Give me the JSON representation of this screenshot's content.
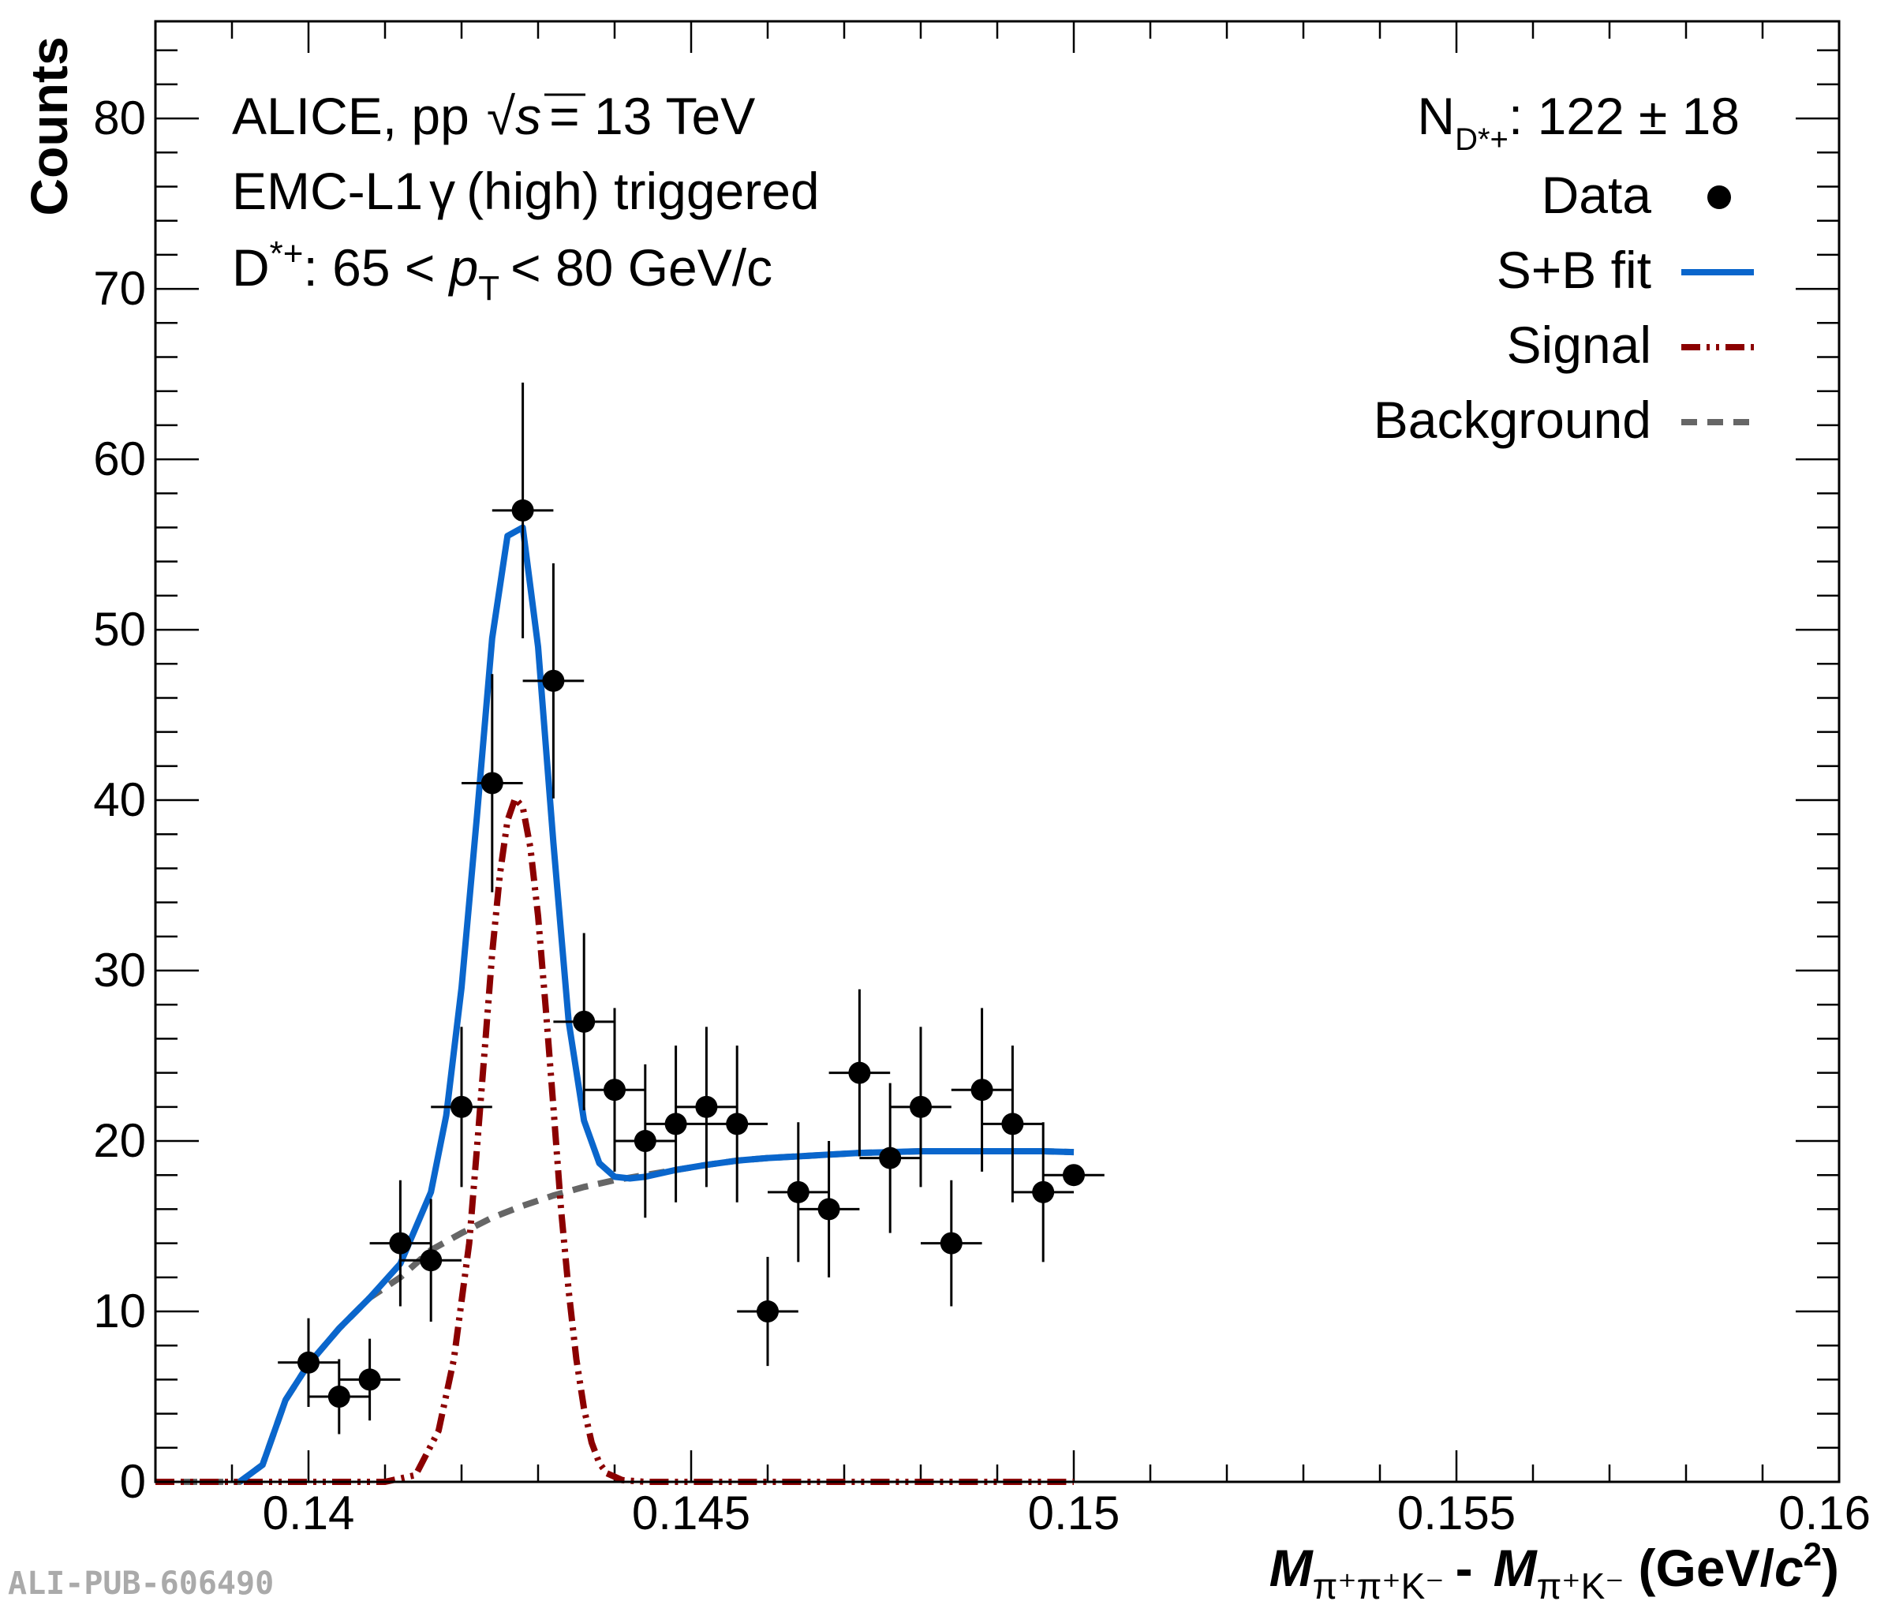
{
  "chart_data": {
    "type": "scatter",
    "xlabel": {
      "m1": "M",
      "sub1": "π⁺π⁺K⁻",
      "minus": "-",
      "m2": "M",
      "sub2": "π⁺K⁻",
      "unit_pre": "(GeV/",
      "unit_c": "c",
      "unit_pow": "2",
      "unit_post": ")"
    },
    "ylabel": "Counts",
    "xlim": [
      0.138,
      0.16
    ],
    "ylim": [
      0,
      85.7
    ],
    "x_ticks": [
      0.14,
      0.145,
      0.15,
      0.155,
      0.16
    ],
    "x_tick_labels": [
      "0.14",
      "0.145",
      "0.15",
      "0.155",
      "0.16"
    ],
    "y_ticks": [
      0,
      10,
      20,
      30,
      40,
      50,
      60,
      70,
      80
    ],
    "y_tick_labels": [
      "0",
      "10",
      "20",
      "30",
      "40",
      "50",
      "60",
      "70",
      "80"
    ],
    "annotations": {
      "line1_a": "ALICE, pp",
      "line1_sqrt": "√",
      "line1_s": "s",
      "line1_b": "= 13 TeV",
      "line2_a": "EMC-L1",
      "line2_gamma": "γ",
      "line2_b": "(high) triggered",
      "line3_a": "D",
      "line3_sup": "*+",
      "line3_b": ": 65 <",
      "line3_p": "p",
      "line3_sub": "T",
      "line3_c": "< 80 GeV/c",
      "yield_N": "N",
      "yield_sub": "D*+",
      "yield_value": ": 122 ± 18"
    },
    "legend": {
      "position": "top-right",
      "entries": [
        "Data",
        "S+B fit",
        "Signal",
        "Background"
      ]
    },
    "colors": {
      "data": "#000000",
      "fit": "#0a66cc",
      "signal": "#8b0000",
      "background": "#666666"
    },
    "series": [
      {
        "name": "Data",
        "x_half_width": 0.0004,
        "points": [
          {
            "x": 0.14,
            "y": 7,
            "err": 2.6
          },
          {
            "x": 0.1404,
            "y": 5,
            "err": 2.2
          },
          {
            "x": 0.1408,
            "y": 6,
            "err": 2.4
          },
          {
            "x": 0.1412,
            "y": 14,
            "err": 3.7
          },
          {
            "x": 0.1416,
            "y": 13,
            "err": 3.6
          },
          {
            "x": 0.142,
            "y": 22,
            "err": 4.7
          },
          {
            "x": 0.1424,
            "y": 41,
            "err": 6.4
          },
          {
            "x": 0.1428,
            "y": 57,
            "err": 7.5
          },
          {
            "x": 0.1432,
            "y": 47,
            "err": 6.9
          },
          {
            "x": 0.1436,
            "y": 27,
            "err": 5.2
          },
          {
            "x": 0.144,
            "y": 23,
            "err": 4.8
          },
          {
            "x": 0.1444,
            "y": 20,
            "err": 4.5
          },
          {
            "x": 0.1448,
            "y": 21,
            "err": 4.6
          },
          {
            "x": 0.1452,
            "y": 22,
            "err": 4.7
          },
          {
            "x": 0.1456,
            "y": 21,
            "err": 4.6
          },
          {
            "x": 0.146,
            "y": 10,
            "err": 3.2
          },
          {
            "x": 0.1464,
            "y": 17,
            "err": 4.1
          },
          {
            "x": 0.1468,
            "y": 16,
            "err": 4.0
          },
          {
            "x": 0.1472,
            "y": 24,
            "err": 4.9
          },
          {
            "x": 0.1476,
            "y": 19,
            "err": 4.4
          },
          {
            "x": 0.148,
            "y": 22,
            "err": 4.7
          },
          {
            "x": 0.1484,
            "y": 14,
            "err": 3.7
          },
          {
            "x": 0.1488,
            "y": 23,
            "err": 4.8
          },
          {
            "x": 0.1492,
            "y": 21,
            "err": 4.6
          },
          {
            "x": 0.1496,
            "y": 17,
            "err": 4.1
          },
          {
            "x": 0.15,
            "y": 18,
            "err": 0
          }
        ]
      },
      {
        "name": "S+B fit",
        "x": [
          0.1391,
          0.1394,
          0.1397,
          0.14,
          0.1404,
          0.1408,
          0.1412,
          0.1416,
          0.1418,
          0.142,
          0.1422,
          0.1424,
          0.1426,
          0.1428,
          0.143,
          0.1432,
          0.1434,
          0.1436,
          0.1438,
          0.144,
          0.1442,
          0.1444,
          0.1448,
          0.1452,
          0.1456,
          0.146,
          0.1464,
          0.1468,
          0.1472,
          0.1476,
          0.148,
          0.1484,
          0.1488,
          0.1492,
          0.1496,
          0.15
        ],
        "y": [
          0,
          1.0,
          4.8,
          6.9,
          9.0,
          10.8,
          12.8,
          17.0,
          21.5,
          29.0,
          39.0,
          49.5,
          55.5,
          56.0,
          49.0,
          37.5,
          27.0,
          21.2,
          18.7,
          17.9,
          17.8,
          17.9,
          18.3,
          18.6,
          18.85,
          19.0,
          19.1,
          19.2,
          19.3,
          19.35,
          19.4,
          19.4,
          19.4,
          19.4,
          19.4,
          19.35
        ]
      },
      {
        "name": "Signal",
        "x": [
          0.138,
          0.141,
          0.1414,
          0.1417,
          0.1419,
          0.1421,
          0.1422,
          0.1423,
          0.1424,
          0.1425,
          0.1426,
          0.1427,
          0.1428,
          0.1429,
          0.143,
          0.1431,
          0.1432,
          0.1433,
          0.1434,
          0.1435,
          0.1436,
          0.1437,
          0.1438,
          0.1439,
          0.1441,
          0.1444,
          0.15
        ],
        "y": [
          0,
          0,
          0.4,
          3.0,
          7.2,
          14.0,
          19.5,
          25.2,
          31.0,
          35.6,
          38.8,
          40.1,
          39.6,
          37.2,
          33.2,
          27.8,
          22.0,
          16.0,
          11.2,
          7.2,
          4.3,
          2.3,
          1.1,
          0.5,
          0.1,
          0,
          0
        ]
      },
      {
        "name": "Background",
        "x": [
          0.138,
          0.1391,
          0.1394,
          0.1397,
          0.14,
          0.1404,
          0.1408,
          0.1412,
          0.1416,
          0.142,
          0.1424,
          0.1428,
          0.1432,
          0.1436,
          0.144,
          0.1444,
          0.1448,
          0.1452,
          0.1456,
          0.146,
          0.1464,
          0.1468,
          0.1472,
          0.1476,
          0.148,
          0.1484,
          0.1488,
          0.1492,
          0.1496,
          0.15
        ],
        "y": [
          0,
          0,
          1.0,
          4.8,
          6.9,
          9.0,
          10.8,
          12.0,
          13.6,
          14.6,
          15.5,
          16.2,
          16.8,
          17.3,
          17.7,
          18.0,
          18.3,
          18.6,
          18.85,
          19.0,
          19.1,
          19.2,
          19.3,
          19.35,
          19.4,
          19.4,
          19.4,
          19.4,
          19.4,
          19.35
        ]
      }
    ]
  },
  "watermark": "ALI-PUB-606490"
}
